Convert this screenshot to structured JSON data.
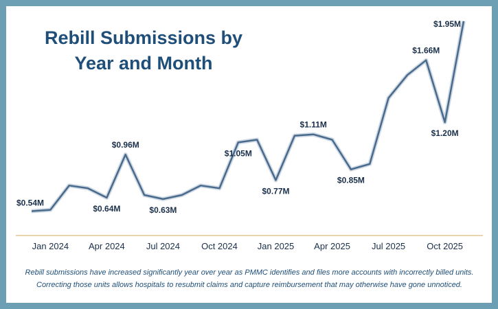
{
  "colors": {
    "frame": "#6c9fb3",
    "title": "#1f4e79",
    "line": "#4a6a8c",
    "axis": "#e3c58f",
    "label": "#1a2f4a"
  },
  "header": {
    "title_line1": "Rebill Submissions by",
    "title_line2": "Year and Month"
  },
  "footer": {
    "caption_line1": "Rebill submissions have increased significantly year over year as PMMC identifies and files more accounts with incorrectly billed units.",
    "caption_line2": "Correcting those units allows hospitals to resubmit claims and capture reimbursement that may otherwise have gone unnoticed."
  },
  "chart_data": {
    "type": "line",
    "title": "Rebill Submissions by Year and Month",
    "xlabel": "",
    "ylabel": "",
    "unit": "$M",
    "grid": false,
    "x": [
      "2023-12",
      "2024-01",
      "2024-02",
      "2024-03",
      "2024-04",
      "2024-05",
      "2024-06",
      "2024-07",
      "2024-08",
      "2024-09",
      "2024-10",
      "2024-11",
      "2024-12",
      "2025-01",
      "2025-02",
      "2025-03",
      "2025-04",
      "2025-05",
      "2025-06",
      "2025-07",
      "2025-08",
      "2025-09",
      "2025-10",
      "2025-11"
    ],
    "y": [
      0.54,
      0.55,
      0.73,
      0.71,
      0.64,
      0.96,
      0.66,
      0.63,
      0.66,
      0.73,
      0.71,
      1.05,
      1.07,
      0.77,
      1.1,
      1.11,
      1.07,
      0.85,
      0.89,
      1.38,
      1.55,
      1.66,
      1.2,
      1.95
    ],
    "ylim": [
      0.4,
      2.0
    ],
    "xticks": [
      {
        "x": "2024-01",
        "label": "Jan 2024"
      },
      {
        "x": "2024-04",
        "label": "Apr 2024"
      },
      {
        "x": "2024-07",
        "label": "Jul 2024"
      },
      {
        "x": "2024-10",
        "label": "Oct 2024"
      },
      {
        "x": "2025-01",
        "label": "Jan 2025"
      },
      {
        "x": "2025-04",
        "label": "Apr 2025"
      },
      {
        "x": "2025-07",
        "label": "Jul 2025"
      },
      {
        "x": "2025-10",
        "label": "Oct 2025"
      }
    ],
    "annotations": [
      {
        "x": "2023-12",
        "text": "$0.54M"
      },
      {
        "x": "2024-04",
        "text": "$0.64M"
      },
      {
        "x": "2024-05",
        "text": "$0.96M"
      },
      {
        "x": "2024-07",
        "text": "$0.63M"
      },
      {
        "x": "2024-11",
        "text": "$1.05M"
      },
      {
        "x": "2025-01",
        "text": "$0.77M"
      },
      {
        "x": "2025-03",
        "text": "$1.11M"
      },
      {
        "x": "2025-05",
        "text": "$0.85M"
      },
      {
        "x": "2025-09",
        "text": "$1.66M"
      },
      {
        "x": "2025-10",
        "text": "$1.20M"
      },
      {
        "x": "2025-11",
        "text": "$1.95M"
      }
    ]
  }
}
